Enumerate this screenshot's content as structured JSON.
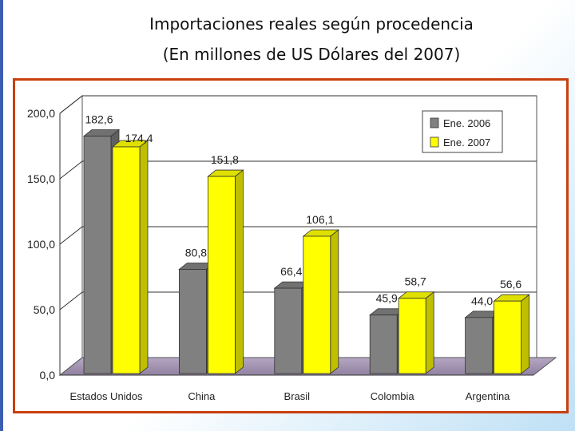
{
  "header": {
    "title_line1": "Importaciones reales según procedencia",
    "title_line2": "(En millones de US Dólares del 2007)"
  },
  "chart_data": {
    "type": "bar",
    "categories": [
      "Estados Unidos",
      "China",
      "Brasil",
      "Colombia",
      "Argentina"
    ],
    "series": [
      {
        "name": "Ene. 2006",
        "values": [
          182.6,
          80.8,
          66.4,
          45.9,
          44.0
        ],
        "labels": [
          "182,6",
          "80,8",
          "66,4",
          "45,9",
          "44,0"
        ],
        "color": "#808080"
      },
      {
        "name": "Ene. 2007",
        "values": [
          174.4,
          151.8,
          106.1,
          58.7,
          56.6
        ],
        "labels": [
          "174,4",
          "151,8",
          "106,1",
          "58,7",
          "56,6"
        ],
        "color": "#ffff00"
      }
    ],
    "y_ticks": [
      "0,0",
      "50,0",
      "100,0",
      "150,0",
      "200,0"
    ],
    "ylim": [
      0,
      200
    ],
    "grid": true,
    "legend_position": "top-right",
    "style": "3d-bars"
  }
}
